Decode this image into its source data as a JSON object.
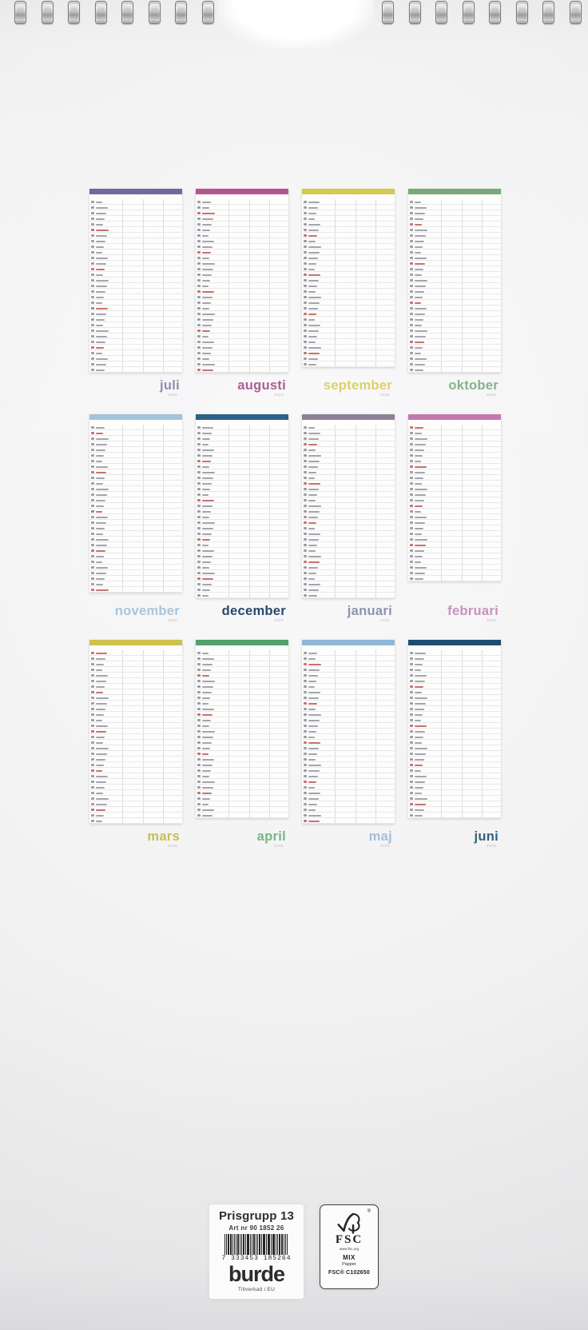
{
  "page": {
    "background": "#f2f2f3",
    "paper_white": "#fdfdfc"
  },
  "binding": {
    "left_loops": 8,
    "right_loops": 8
  },
  "months": [
    {
      "name": "juli",
      "year": "2025",
      "days": 31,
      "bar_color": "#6b6b9d",
      "label_color": "#8f8dae"
    },
    {
      "name": "augusti",
      "year": "2025",
      "days": 31,
      "bar_color": "#b65492",
      "label_color": "#ab5d95"
    },
    {
      "name": "september",
      "year": "2025",
      "days": 30,
      "bar_color": "#d6c94f",
      "label_color": "#ddd166"
    },
    {
      "name": "oktober",
      "year": "2025",
      "days": 31,
      "bar_color": "#7aa877",
      "label_color": "#88b288"
    },
    {
      "name": "november",
      "year": "2025",
      "days": 30,
      "bar_color": "#a2c3dc",
      "label_color": "#aac5dc"
    },
    {
      "name": "december",
      "year": "2025",
      "days": 31,
      "bar_color": "#2c6285",
      "label_color": "#27496b"
    },
    {
      "name": "januari",
      "year": "2026",
      "days": 31,
      "bar_color": "#8d8097",
      "label_color": "#8b94ae"
    },
    {
      "name": "februari",
      "year": "2026",
      "days": 28,
      "bar_color": "#c279ae",
      "label_color": "#c791bd"
    },
    {
      "name": "mars",
      "year": "2026",
      "days": 31,
      "bar_color": "#cfc14d",
      "label_color": "#c9bd55"
    },
    {
      "name": "april",
      "year": "2026",
      "days": 30,
      "bar_color": "#52a06c",
      "label_color": "#7bb485"
    },
    {
      "name": "maj",
      "year": "2026",
      "days": 31,
      "bar_color": "#90b7d7",
      "label_color": "#a3bfd9"
    },
    {
      "name": "juni",
      "year": "2026",
      "days": 30,
      "bar_color": "#1d4d70",
      "label_color": "#33617f"
    }
  ],
  "footer": {
    "prisgrupp": "Prisgrupp 13",
    "artnr": "Art nr 90 1852 26",
    "barcode_digits": "7 333453 185264",
    "barcode_value": "7333453185264",
    "brand": "burde",
    "made_in": "Tillverkad i EU",
    "fsc": {
      "registered": "®",
      "name": "FSC",
      "url": "www.fsc.org",
      "grade": "MIX",
      "material": "Papper",
      "license": "FSC® C102650"
    }
  }
}
